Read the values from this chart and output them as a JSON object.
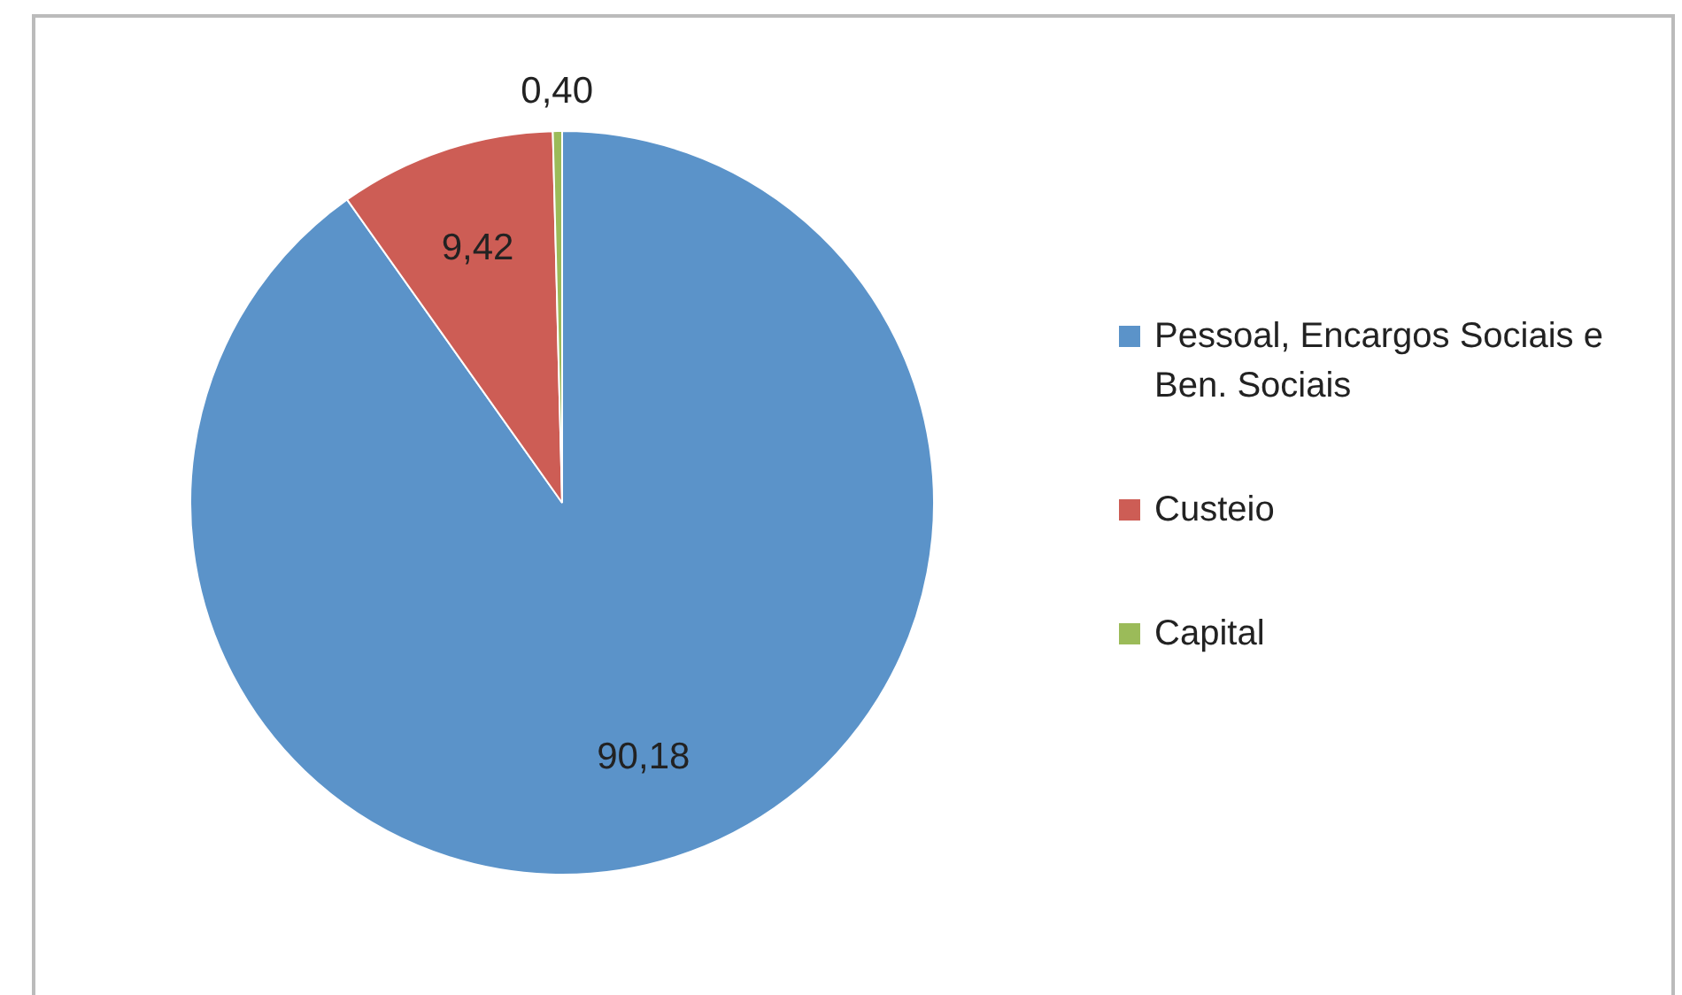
{
  "chart_data": {
    "type": "pie",
    "categories": [
      "Pessoal, Encargos Sociais e Ben. Sociais",
      "Custeio",
      "Capital"
    ],
    "values": [
      90.18,
      9.42,
      0.4
    ],
    "colors": [
      "#5b93c9",
      "#cd5d55",
      "#9bbb59"
    ],
    "value_labels": [
      "90,18",
      "9,42",
      "0,40"
    ],
    "legend": "right"
  }
}
